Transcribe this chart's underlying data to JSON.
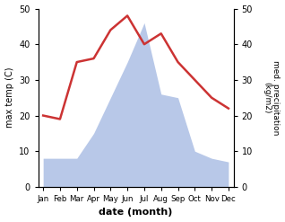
{
  "months": [
    "Jan",
    "Feb",
    "Mar",
    "Apr",
    "May",
    "Jun",
    "Jul",
    "Aug",
    "Sep",
    "Oct",
    "Nov",
    "Dec"
  ],
  "temperature": [
    20,
    19,
    35,
    36,
    44,
    48,
    40,
    43,
    35,
    30,
    25,
    22
  ],
  "precipitation": [
    8,
    8,
    8,
    15,
    25,
    35,
    46,
    26,
    25,
    10,
    8,
    7
  ],
  "temp_color": "#cc3333",
  "precip_fill_color": "#b8c8e8",
  "xlabel": "date (month)",
  "ylabel_left": "max temp (C)",
  "ylabel_right": "med. precipitation\n(kg/m2)",
  "ylim_left": [
    0,
    50
  ],
  "ylim_right": [
    0,
    50
  ],
  "yticks_left": [
    0,
    10,
    20,
    30,
    40,
    50
  ],
  "yticks_right": [
    0,
    10,
    20,
    30,
    40,
    50
  ],
  "temp_linewidth": 1.8,
  "bg_color": "#ffffff"
}
